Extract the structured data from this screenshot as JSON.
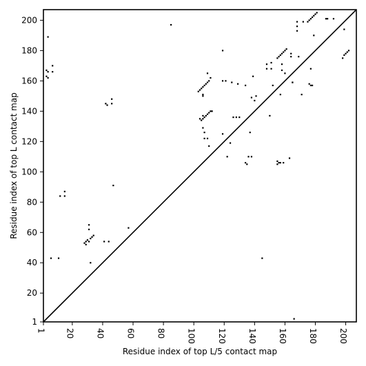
{
  "chart_data": {
    "type": "scatter",
    "xlabel": "Residue index of top L/5 contact map",
    "ylabel": "Residue index of top L contact map",
    "xlim": [
      1,
      207
    ],
    "ylim": [
      1,
      207
    ],
    "xticks": [
      1,
      20,
      40,
      60,
      80,
      100,
      120,
      140,
      160,
      180,
      200
    ],
    "yticks": [
      1,
      20,
      40,
      60,
      80,
      100,
      120,
      140,
      160,
      180,
      200
    ],
    "grid": false,
    "legend": "none",
    "diagonal": {
      "from": [
        1,
        1
      ],
      "to": [
        207,
        207
      ]
    },
    "colors": {
      "points": "#000000",
      "axes": "#000000",
      "background": "#ffffff"
    },
    "series": [
      {
        "marker": "square",
        "points": [
          [
            4,
            189
          ],
          [
            3,
            167
          ],
          [
            4,
            166
          ],
          [
            3,
            163
          ],
          [
            4,
            162
          ],
          [
            7,
            170
          ],
          [
            7,
            166
          ],
          [
            6,
            43
          ],
          [
            11,
            43
          ],
          [
            12,
            84
          ],
          [
            15,
            84
          ],
          [
            15,
            87
          ],
          [
            28,
            53
          ],
          [
            29,
            52
          ],
          [
            29,
            54
          ],
          [
            30,
            55
          ],
          [
            31,
            54
          ],
          [
            32,
            56
          ],
          [
            33,
            57
          ],
          [
            34,
            58
          ],
          [
            31,
            65
          ],
          [
            31,
            62
          ],
          [
            32,
            40
          ],
          [
            41,
            54
          ],
          [
            44,
            54
          ],
          [
            42,
            145
          ],
          [
            43,
            144
          ],
          [
            46,
            148
          ],
          [
            46,
            145
          ],
          [
            47,
            91
          ],
          [
            57,
            63
          ],
          [
            85,
            197
          ],
          [
            103,
            153
          ],
          [
            104,
            154
          ],
          [
            105,
            155
          ],
          [
            106,
            156
          ],
          [
            107,
            157
          ],
          [
            108,
            158
          ],
          [
            109,
            159
          ],
          [
            110,
            160
          ],
          [
            106,
            151
          ],
          [
            106,
            150
          ],
          [
            104,
            135
          ],
          [
            105,
            134
          ],
          [
            106,
            135
          ],
          [
            106,
            137
          ],
          [
            107,
            136
          ],
          [
            108,
            137
          ],
          [
            109,
            138
          ],
          [
            110,
            139
          ],
          [
            111,
            140
          ],
          [
            112,
            140
          ],
          [
            106,
            129
          ],
          [
            107,
            126
          ],
          [
            107,
            122
          ],
          [
            109,
            122
          ],
          [
            110,
            117
          ],
          [
            109,
            165
          ],
          [
            111,
            162
          ],
          [
            119,
            180
          ],
          [
            119,
            160
          ],
          [
            121,
            160
          ],
          [
            125,
            159
          ],
          [
            129,
            158
          ],
          [
            119,
            125
          ],
          [
            122,
            110
          ],
          [
            124,
            119
          ],
          [
            126,
            136
          ],
          [
            128,
            136
          ],
          [
            130,
            136
          ],
          [
            134,
            157
          ],
          [
            134,
            106
          ],
          [
            135,
            105
          ],
          [
            136,
            110
          ],
          [
            137,
            126
          ],
          [
            138,
            110
          ],
          [
            138,
            149
          ],
          [
            139,
            163
          ],
          [
            140,
            147
          ],
          [
            141,
            150
          ],
          [
            145,
            43
          ],
          [
            148,
            168
          ],
          [
            148,
            171
          ],
          [
            151,
            168
          ],
          [
            151,
            172
          ],
          [
            152,
            157
          ],
          [
            150,
            137
          ],
          [
            155,
            175
          ],
          [
            156,
            176
          ],
          [
            157,
            177
          ],
          [
            158,
            178
          ],
          [
            159,
            179
          ],
          [
            160,
            180
          ],
          [
            161,
            181
          ],
          [
            158,
            171
          ],
          [
            158,
            167
          ],
          [
            157,
            151
          ],
          [
            160,
            165
          ],
          [
            155,
            105
          ],
          [
            155,
            107
          ],
          [
            156,
            106
          ],
          [
            157,
            106
          ],
          [
            159,
            106
          ],
          [
            163,
            109
          ],
          [
            164,
            178
          ],
          [
            164,
            176
          ],
          [
            165,
            159
          ],
          [
            166,
            3
          ],
          [
            168,
            193
          ],
          [
            168,
            196
          ],
          [
            168,
            199
          ],
          [
            169,
            176
          ],
          [
            171,
            151
          ],
          [
            172,
            199
          ],
          [
            175,
            199
          ],
          [
            176,
            200
          ],
          [
            177,
            201
          ],
          [
            178,
            202
          ],
          [
            179,
            203
          ],
          [
            180,
            204
          ],
          [
            181,
            205
          ],
          [
            176,
            158
          ],
          [
            177,
            157
          ],
          [
            178,
            157
          ],
          [
            177,
            168
          ],
          [
            179,
            190
          ],
          [
            187,
            201
          ],
          [
            188,
            201
          ],
          [
            192,
            201
          ],
          [
            198,
            175
          ],
          [
            199,
            177
          ],
          [
            200,
            178
          ],
          [
            201,
            179
          ],
          [
            202,
            180
          ],
          [
            199,
            194
          ],
          [
            165,
            159
          ]
        ]
      }
    ]
  }
}
